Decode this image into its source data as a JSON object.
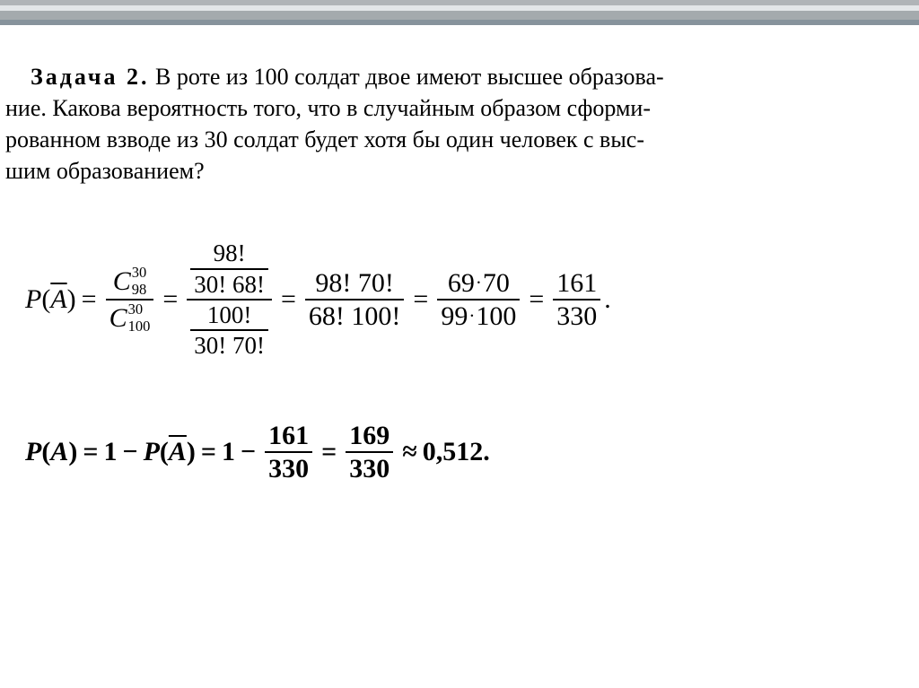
{
  "decorative_bars": {
    "bar1_color": "#b0b4b7",
    "bar1_height": 6,
    "bar2_color": "#e3e6e8",
    "bar2_height": 6,
    "bar3_color": "#a4aaad",
    "bar3_height": 16,
    "bar3_inner_color": "#87939c",
    "bar3_inner_height": 6
  },
  "problem": {
    "label": "Задача 2.",
    "text_part1": " В роте из 100 солдат двое имеют высшее образова",
    "text_line2": "ние. Какова вероятность того, что в случайным образом сформи",
    "text_line3": "рованном взводе из 30 солдат будет хотя бы один человек с выс",
    "text_line4": "шим образованием?",
    "font_size": 26,
    "font_family": "serif",
    "color": "#000000"
  },
  "equation1": {
    "lhs_P": "P",
    "lhs_open": "(",
    "lhs_A": "A",
    "lhs_close": ")",
    "eq": "=",
    "step1": {
      "C": "C",
      "num_top": "30",
      "num_bottom": "98",
      "den_top": "30",
      "den_bottom": "100"
    },
    "step2": {
      "upper_num": "98!",
      "upper_den": "30! 68!",
      "lower_num": "100!",
      "lower_den": "30! 70!"
    },
    "step3": {
      "num": "98! 70!",
      "den": "68! 100!"
    },
    "step4": {
      "num1": "69",
      "num2": "70",
      "den1": "99",
      "den2": "100"
    },
    "step5": {
      "num": "161",
      "den": "330"
    },
    "period": "."
  },
  "equation2": {
    "P": "P",
    "open": "(",
    "A": "A",
    "close": ")",
    "eq": "=",
    "one": "1",
    "minus": "−",
    "Abar": "A",
    "frac1": {
      "num": "161",
      "den": "330"
    },
    "frac2": {
      "num": "169",
      "den": "330"
    },
    "approx": "≈",
    "result": "0,512",
    "period": "."
  },
  "styling": {
    "body_width": 1024,
    "body_height": 767,
    "background_color": "#ffffff",
    "text_color": "#000000",
    "equation_font_size": 30,
    "fraction_bar_thickness": 2
  }
}
